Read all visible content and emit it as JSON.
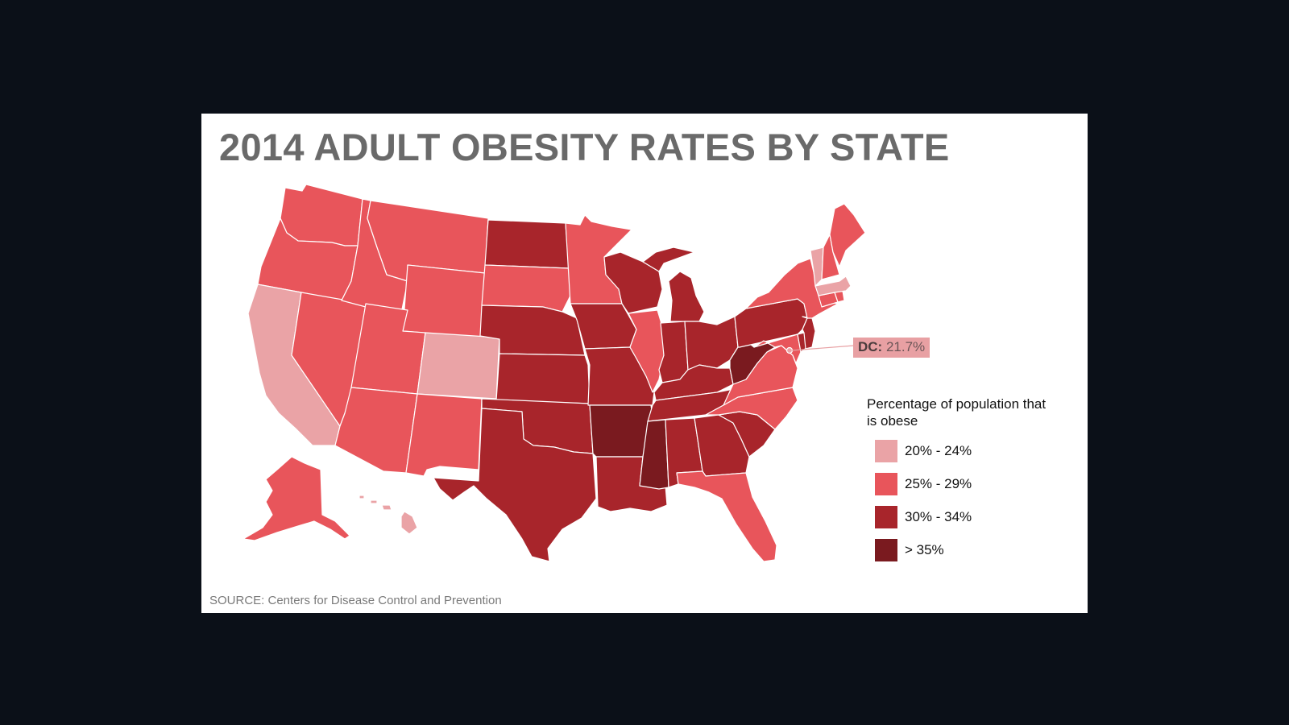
{
  "title": "2014 ADULT OBESITY RATES BY STATE",
  "source": "SOURCE: Centers for Disease Control and Prevention",
  "callout": {
    "label": "DC:",
    "value": "21.7%"
  },
  "legend": {
    "title": "Percentage of population that is obese",
    "items": [
      {
        "label": "20% - 24%",
        "color": "#eaa3a6"
      },
      {
        "label": "25% - 29%",
        "color": "#e8555b"
      },
      {
        "label": "30% - 34%",
        "color": "#a8252b"
      },
      {
        "label": "> 35%",
        "color": "#7a1a1f"
      }
    ]
  },
  "map_data": {
    "classes": {
      "WA": "25% - 29%",
      "OR": "25% - 29%",
      "CA": "20% - 24%",
      "NV": "25% - 29%",
      "ID": "25% - 29%",
      "MT": "25% - 29%",
      "WY": "25% - 29%",
      "UT": "25% - 29%",
      "CO": "20% - 24%",
      "AZ": "25% - 29%",
      "NM": "25% - 29%",
      "ND": "30% - 34%",
      "SD": "25% - 29%",
      "NE": "30% - 34%",
      "KS": "30% - 34%",
      "OK": "30% - 34%",
      "TX": "30% - 34%",
      "MN": "25% - 29%",
      "IA": "30% - 34%",
      "MO": "30% - 34%",
      "AR": "> 35%",
      "LA": "30% - 34%",
      "WI": "30% - 34%",
      "IL": "25% - 29%",
      "MI": "30% - 34%",
      "IN": "30% - 34%",
      "OH": "30% - 34%",
      "KY": "30% - 34%",
      "TN": "30% - 34%",
      "MS": "> 35%",
      "AL": "30% - 34%",
      "GA": "30% - 34%",
      "FL": "25% - 29%",
      "SC": "30% - 34%",
      "NC": "25% - 29%",
      "VA": "25% - 29%",
      "WV": "> 35%",
      "PA": "30% - 34%",
      "NY": "25% - 29%",
      "VT": "20% - 24%",
      "NH": "25% - 29%",
      "ME": "25% - 29%",
      "MA": "20% - 24%",
      "CT": "25% - 29%",
      "RI": "25% - 29%",
      "NJ": "30% - 34%",
      "DE": "30% - 34%",
      "MD": "25% - 29%",
      "AK": "25% - 29%",
      "HI": "20% - 24%",
      "DC": "20% - 24%"
    }
  }
}
